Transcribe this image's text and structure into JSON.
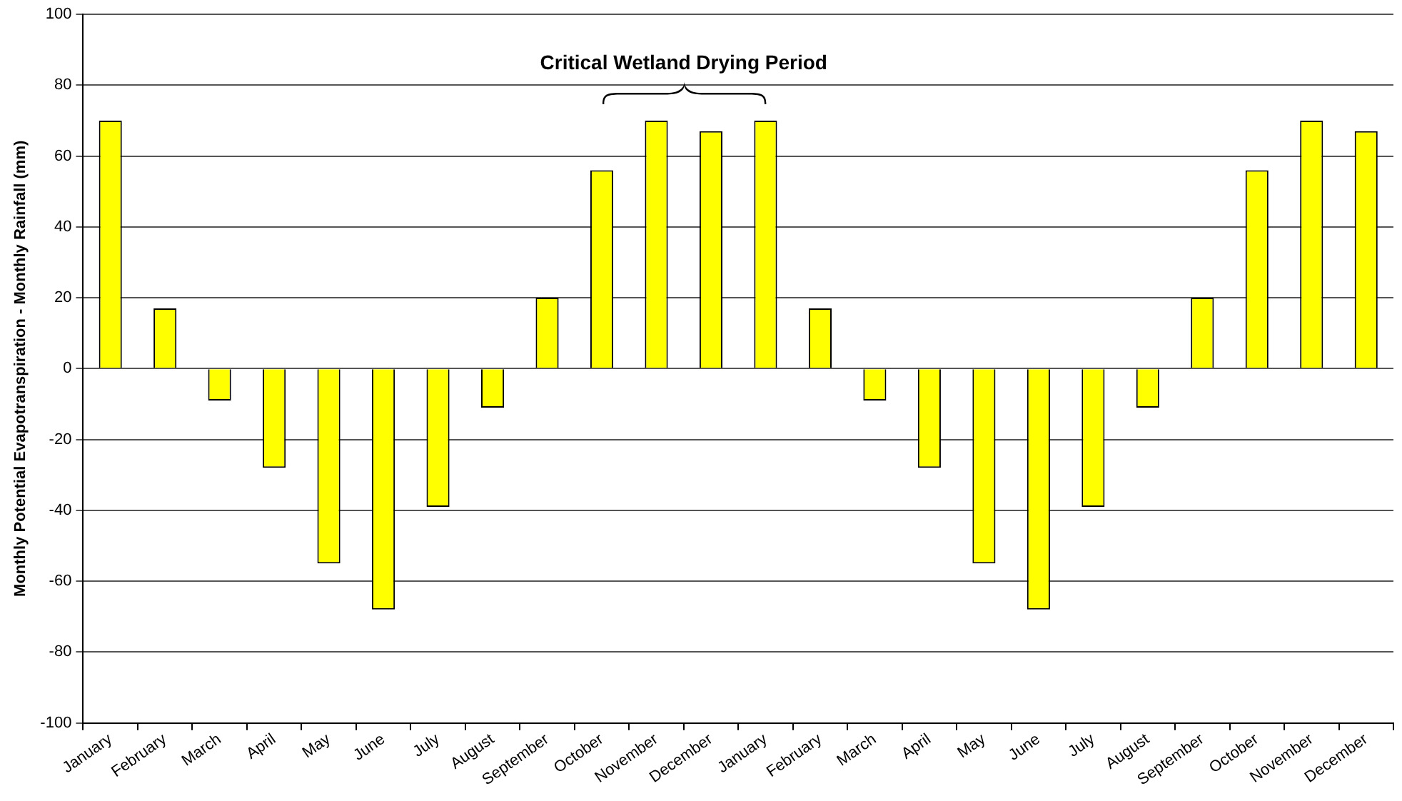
{
  "chart_data": {
    "type": "bar",
    "ylabel": "Monthly Potential Evapotranspiration - Monthly Rainfall (mm)",
    "categories": [
      "January",
      "February",
      "March",
      "April",
      "May",
      "June",
      "July",
      "August",
      "September",
      "October",
      "November",
      "December",
      "January",
      "February",
      "March",
      "April",
      "May",
      "June",
      "July",
      "August",
      "September",
      "October",
      "November",
      "December"
    ],
    "values": [
      70,
      17,
      -9,
      -28,
      -55,
      -68,
      -39,
      -11,
      20,
      56,
      70,
      67,
      70,
      17,
      -9,
      -28,
      -55,
      -68,
      -39,
      -11,
      20,
      56,
      70,
      67
    ],
    "color": "#ffff00",
    "ylim": [
      -100,
      100
    ],
    "yticks": [
      -100,
      -80,
      -60,
      -40,
      -20,
      0,
      20,
      40,
      60,
      80,
      100
    ],
    "grid": "y",
    "legend": false,
    "annotations": [
      "Critical Wetland Drying Period"
    ]
  }
}
